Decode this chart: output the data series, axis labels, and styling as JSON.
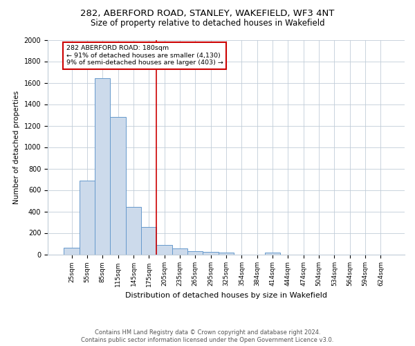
{
  "title1": "282, ABERFORD ROAD, STANLEY, WAKEFIELD, WF3 4NT",
  "title2": "Size of property relative to detached houses in Wakefield",
  "xlabel": "Distribution of detached houses by size in Wakefield",
  "ylabel": "Number of detached properties",
  "footnote1": "Contains HM Land Registry data © Crown copyright and database right 2024.",
  "footnote2": "Contains public sector information licensed under the Open Government Licence v3.0.",
  "bar_labels": [
    "25sqm",
    "55sqm",
    "85sqm",
    "115sqm",
    "145sqm",
    "175sqm",
    "205sqm",
    "235sqm",
    "265sqm",
    "295sqm",
    "325sqm",
    "354sqm",
    "384sqm",
    "414sqm",
    "444sqm",
    "474sqm",
    "504sqm",
    "534sqm",
    "564sqm",
    "594sqm",
    "624sqm"
  ],
  "bar_values": [
    60,
    690,
    1640,
    1280,
    440,
    255,
    85,
    55,
    30,
    20,
    15,
    0,
    0,
    15,
    0,
    0,
    0,
    0,
    0,
    0,
    0
  ],
  "bar_color": "#ccdaeb",
  "bar_edgecolor": "#6699cc",
  "bar_width": 1.0,
  "vline_x": 5.5,
  "vline_color": "#cc0000",
  "ylim": [
    0,
    2000
  ],
  "yticks": [
    0,
    200,
    400,
    600,
    800,
    1000,
    1200,
    1400,
    1600,
    1800,
    2000
  ],
  "annotation_title": "282 ABERFORD ROAD: 180sqm",
  "annotation_line1": "← 91% of detached houses are smaller (4,130)",
  "annotation_line2": "9% of semi-detached houses are larger (403) →",
  "annotation_box_color": "#ffffff",
  "annotation_box_edgecolor": "#cc0000",
  "grid_color": "#c0ccd8",
  "background_color": "#ffffff",
  "title_fontsize": 9.5,
  "subtitle_fontsize": 8.5
}
